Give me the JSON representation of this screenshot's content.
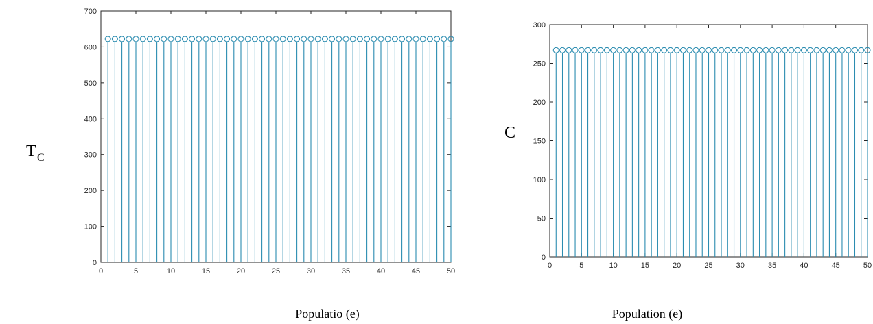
{
  "chart_data": [
    {
      "type": "stem",
      "ylabel": "T",
      "ylabel_sub": "C",
      "xlabel": "Populatio (e)",
      "xlim": [
        0,
        50
      ],
      "ylim": [
        0,
        700
      ],
      "xticks": [
        0,
        5,
        10,
        15,
        20,
        25,
        30,
        35,
        40,
        45,
        50
      ],
      "yticks": [
        0,
        100,
        200,
        300,
        400,
        500,
        600,
        700
      ],
      "x_range": [
        1,
        50
      ],
      "constant_value": 622,
      "color": "#2b8cb0"
    },
    {
      "type": "stem",
      "ylabel": "C",
      "xlabel": "Population (e)",
      "xlim": [
        0,
        50
      ],
      "ylim": [
        0,
        300
      ],
      "xticks": [
        0,
        5,
        10,
        15,
        20,
        25,
        30,
        35,
        40,
        45,
        50
      ],
      "yticks": [
        0,
        50,
        100,
        150,
        200,
        250,
        300
      ],
      "x_range": [
        1,
        50
      ],
      "constant_value": 267,
      "color": "#2b8cb0"
    }
  ]
}
